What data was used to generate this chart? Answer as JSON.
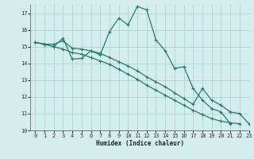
{
  "x": [
    0,
    1,
    2,
    3,
    4,
    5,
    6,
    7,
    8,
    9,
    10,
    11,
    12,
    13,
    14,
    15,
    16,
    17,
    18,
    19,
    20,
    21,
    22,
    23
  ],
  "line1": [
    15.25,
    15.15,
    15.0,
    15.5,
    14.25,
    14.3,
    14.75,
    14.5,
    15.9,
    16.7,
    16.3,
    17.4,
    17.2,
    15.4,
    14.75,
    13.7,
    13.8,
    12.5,
    11.8,
    11.3,
    11.1,
    10.4,
    null,
    null
  ],
  "line2": [
    15.25,
    15.15,
    15.15,
    15.35,
    14.9,
    14.85,
    14.75,
    14.6,
    14.35,
    14.1,
    13.85,
    13.55,
    13.2,
    12.9,
    12.6,
    12.25,
    11.9,
    11.55,
    12.5,
    11.8,
    11.5,
    11.1,
    11.0,
    10.4
  ],
  "line3": [
    15.25,
    15.15,
    15.0,
    14.85,
    14.65,
    14.55,
    14.35,
    14.15,
    13.95,
    13.65,
    13.35,
    13.05,
    12.7,
    12.4,
    12.1,
    11.8,
    11.5,
    11.2,
    10.95,
    10.7,
    10.55,
    10.45,
    10.4,
    null
  ],
  "color": "#2a7a6a",
  "bg_color": "#d4eeee",
  "grid_color": "#aad4d4",
  "xlabel": "Humidex (Indice chaleur)",
  "ylim": [
    10,
    17.5
  ],
  "xlim": [
    -0.5,
    23
  ],
  "yticks": [
    10,
    11,
    12,
    13,
    14,
    15,
    16,
    17
  ],
  "xticks": [
    0,
    1,
    2,
    3,
    4,
    5,
    6,
    7,
    8,
    9,
    10,
    11,
    12,
    13,
    14,
    15,
    16,
    17,
    18,
    19,
    20,
    21,
    22,
    23
  ]
}
